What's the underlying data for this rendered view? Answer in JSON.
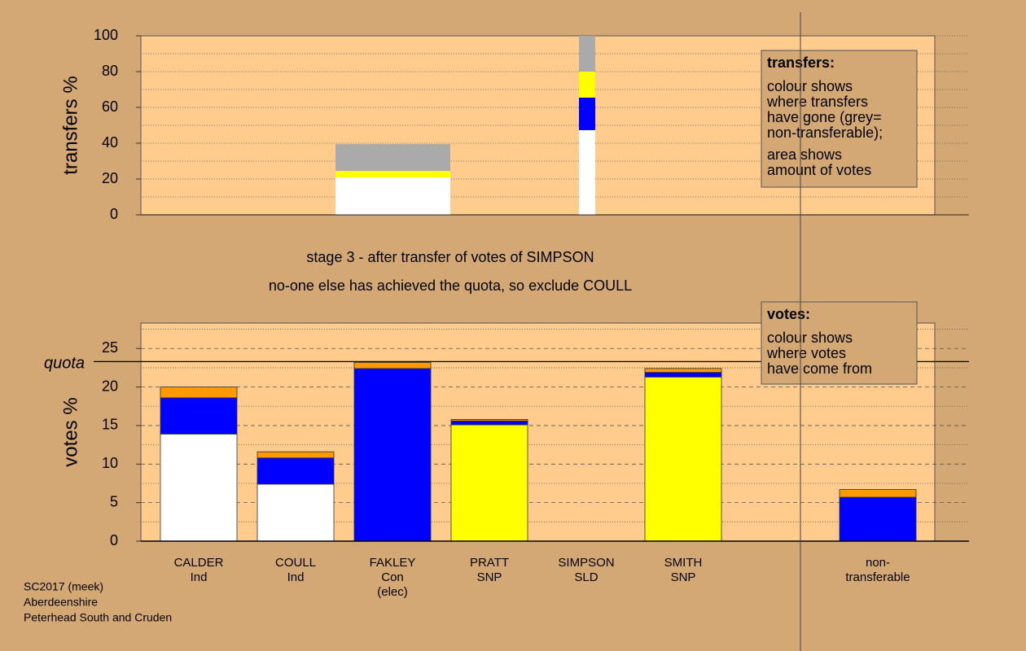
{
  "chart_data": [
    {
      "type": "stacked-bar",
      "ylabel": "transfers %",
      "ylim": [
        0,
        100
      ],
      "yticks": [
        0,
        20,
        40,
        60,
        80,
        100
      ],
      "minor_yticks": [
        10,
        30,
        50,
        70,
        90
      ],
      "grid": true,
      "series": [
        {
          "color": "#ffffff",
          "values": [
            20.9,
            47.3
          ]
        },
        {
          "color": "#0000ff",
          "values": [
            0,
            18.2
          ]
        },
        {
          "color": "#ffff00",
          "values": [
            3.6,
            14.5
          ]
        },
        {
          "color": "#aaaaaa",
          "values": [
            15,
            20
          ]
        }
      ],
      "annotation": {
        "heading": "transfers:",
        "paragraphs": [
          [
            "colour shows",
            "where transfers",
            "have gone (grey=",
            "non-transferable);"
          ],
          [
            "area shows",
            "amount of votes"
          ]
        ]
      }
    },
    {
      "type": "stacked-bar",
      "title": [
        "stage 3 - after transfer of votes of SIMPSON",
        "no-one else has achieved the quota, so exclude COULL"
      ],
      "ylabel": "votes %",
      "ylim": [
        0,
        28.3
      ],
      "yticks": [
        0,
        5,
        10,
        15,
        20,
        25
      ],
      "minor_yticks": [
        2.5,
        7.5,
        12.5,
        17.5,
        22.5,
        27.5
      ],
      "grid": true,
      "quota": 23.3,
      "quota_label": "quota",
      "categories": [
        [
          "CALDER",
          "Ind"
        ],
        [
          "COULL",
          "Ind"
        ],
        [
          "FAKLEY",
          "Con",
          "(elec)"
        ],
        [
          "PRATT",
          "SNP"
        ],
        [
          "SIMPSON",
          "SLD"
        ],
        [
          "SMITH",
          "SNP"
        ],
        [
          "non-",
          "transferable"
        ]
      ],
      "series": [
        {
          "color": "#ffffff",
          "values": [
            13.9,
            7.4,
            0,
            0,
            0,
            0,
            0
          ]
        },
        {
          "color": "#ffff00",
          "values": [
            0,
            0,
            0,
            15.1,
            0,
            21.3,
            0
          ]
        },
        {
          "color": "#0000ff",
          "values": [
            4.7,
            3.4,
            22.4,
            0.5,
            0,
            0.6,
            5.7
          ]
        },
        {
          "color": "#ff9900",
          "values": [
            1.4,
            0.8,
            0.8,
            0.2,
            0,
            0.5,
            1.0
          ]
        }
      ],
      "annotation": {
        "heading": "votes:",
        "paragraphs": [
          [
            "colour shows",
            "where votes",
            "have come from"
          ]
        ]
      }
    }
  ],
  "footer": [
    "SC2017 (meek)",
    "Aberdeenshire",
    "Peterhead South and Cruden"
  ]
}
